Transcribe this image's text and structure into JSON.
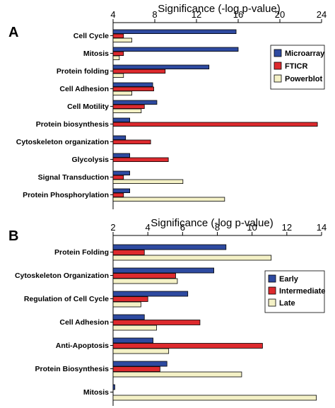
{
  "chart_data": [
    {
      "panel": "A",
      "type": "bar",
      "orientation": "horizontal",
      "xlabel": "Significance (-log p-value)",
      "xlim": [
        4,
        24
      ],
      "xticks": [
        4,
        8,
        12,
        16,
        20,
        24
      ],
      "categories": [
        "Cell Cycle",
        "Mitosis",
        "Protein folding",
        "Cell Adhesion",
        "Cell Motility",
        "Protein biosynthesis",
        "Cytoskeleton organization",
        "Glycolysis",
        "Signal Transduction",
        "Protein Phosphorylation"
      ],
      "series": [
        {
          "name": "Microarray",
          "color": "#2e4aa0",
          "values": [
            15.8,
            16.0,
            13.2,
            7.8,
            8.2,
            5.6,
            5.2,
            5.6,
            5.6,
            5.6
          ]
        },
        {
          "name": "FTICR",
          "color": "#dd2a2e",
          "values": [
            5.0,
            5.0,
            9.0,
            7.9,
            7.0,
            23.6,
            7.6,
            9.3,
            5.0,
            5.0
          ]
        },
        {
          "name": "Powerblot",
          "color": "#f4f1c6",
          "values": [
            5.8,
            4.6,
            5.0,
            5.8,
            6.7,
            null,
            null,
            null,
            10.7,
            14.7
          ]
        }
      ],
      "legend": "right"
    },
    {
      "panel": "B",
      "type": "bar",
      "orientation": "horizontal",
      "xlabel": "Significance (-log p-value)",
      "xlim": [
        2,
        14
      ],
      "xticks": [
        2,
        4,
        6,
        8,
        10,
        12,
        14
      ],
      "categories": [
        "Protein Folding",
        "Cytoskeleton Organization",
        "Regulation of Cell Cycle",
        "Cell Adhesion",
        "Anti-Apoptosis",
        "Protein Biosynthesis",
        "Mitosis"
      ],
      "series": [
        {
          "name": "Early",
          "color": "#2e4aa0",
          "values": [
            8.5,
            7.8,
            6.3,
            3.8,
            4.3,
            5.1,
            2.1
          ]
        },
        {
          "name": "Intermediate",
          "color": "#dd2a2e",
          "values": [
            3.8,
            5.6,
            4.0,
            7.0,
            10.6,
            4.7,
            null
          ]
        },
        {
          "name": "Late",
          "color": "#f4f1c6",
          "values": [
            11.1,
            5.7,
            3.6,
            4.5,
            5.2,
            9.4,
            13.7
          ]
        }
      ],
      "legend": "right"
    }
  ]
}
